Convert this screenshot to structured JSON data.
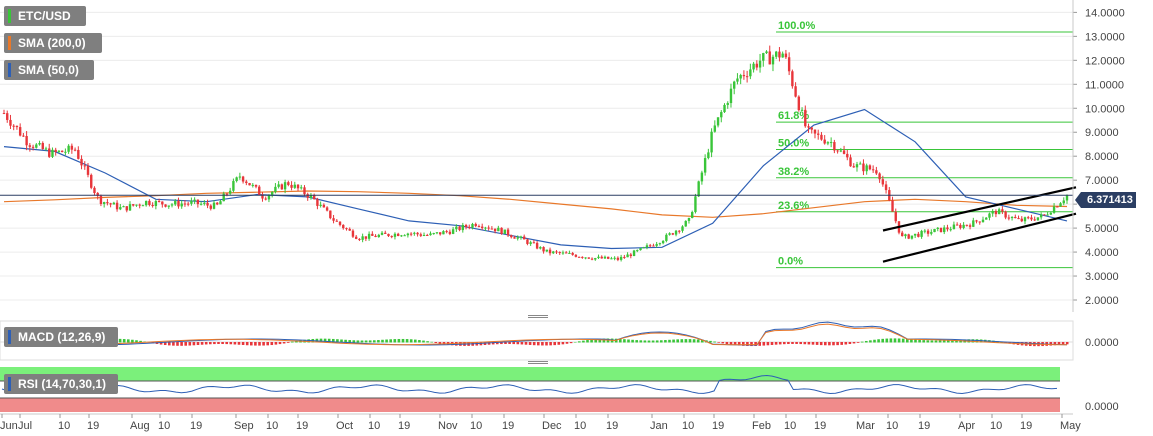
{
  "legends": {
    "pair": "ETC/USD",
    "sma200": "SMA (200,0)",
    "sma50": "SMA (50,0)",
    "macd": "MACD (12,26,9)",
    "rsi": "RSI (14,70,30,1)"
  },
  "colors": {
    "up": "#39c539",
    "down": "#e8353a",
    "sma200": "#e8782a",
    "sma50": "#2d5fb5",
    "fib": "#39c539",
    "rsi_overbought": "#7bf07b",
    "rsi_oversold": "#f08b8b",
    "current_price_bg": "#2b3e63"
  },
  "current_price": "6.371413",
  "macd_axis_label": "0.0000",
  "rsi_axis_label": "0.0000",
  "chart_data": {
    "type": "candlestick",
    "title": "ETC/USD",
    "y_axis": {
      "ticks": [
        "14.0000",
        "13.0000",
        "12.0000",
        "11.0000",
        "10.0000",
        "9.0000",
        "8.0000",
        "7.0000",
        "6.0000",
        "5.0000",
        "4.0000",
        "3.0000",
        "2.0000"
      ],
      "ylim": [
        1.75,
        14.35
      ]
    },
    "x_axis": {
      "ticks": [
        "Jun",
        "Jul",
        "10",
        "19",
        "Aug",
        "10",
        "19",
        "Sep",
        "10",
        "19",
        "Oct",
        "10",
        "19",
        "Nov",
        "10",
        "19",
        "Dec",
        "10",
        "19",
        "Jan",
        "10",
        "19",
        "Feb",
        "10",
        "19",
        "Mar",
        "10",
        "19",
        "Apr",
        "10",
        "19",
        "May"
      ]
    },
    "fibonacci": {
      "levels": [
        {
          "label": "100.0%",
          "value": 13.18
        },
        {
          "label": "61.8%",
          "value": 9.42
        },
        {
          "label": "50.0%",
          "value": 8.28
        },
        {
          "label": "38.2%",
          "value": 7.1
        },
        {
          "label": "23.6%",
          "value": 5.68
        },
        {
          "label": "0.0%",
          "value": 3.35
        }
      ]
    },
    "channel": {
      "upper": [
        [
          0,
          4.9
        ],
        [
          1,
          6.7
        ]
      ],
      "lower": [
        [
          0,
          3.6
        ],
        [
          1,
          5.6
        ]
      ]
    },
    "sma200_points": [
      6.1,
      6.18,
      6.28,
      6.35,
      6.45,
      6.5,
      6.55,
      6.52,
      6.45,
      6.35,
      6.2,
      6.0,
      5.8,
      5.55,
      5.45,
      5.6,
      5.85,
      6.1,
      6.2,
      6.1,
      5.95,
      5.9
    ],
    "sma50_points": [
      8.4,
      8.2,
      7.3,
      6.2,
      6.1,
      6.4,
      6.3,
      5.8,
      5.3,
      5.1,
      4.7,
      4.3,
      4.15,
      4.2,
      5.2,
      7.6,
      9.3,
      9.95,
      8.6,
      6.3,
      5.8,
      5.3
    ],
    "series": [
      {
        "name": "ETC/USD",
        "closes": [
          9.8,
          8.6,
          8.1,
          8.3,
          6.2,
          5.8,
          6.1,
          6.0,
          6.05,
          5.9,
          7.2,
          6.3,
          6.9,
          6.3,
          5.3,
          4.6,
          4.7,
          4.8,
          4.7,
          4.9,
          5.2,
          4.9,
          4.5,
          4.0,
          3.9,
          3.75,
          3.7,
          4.1,
          4.6,
          5.3,
          9.0,
          11.2,
          12.0,
          12.3,
          9.0,
          8.6,
          7.6,
          7.4,
          4.6,
          4.8,
          5.0,
          5.2,
          5.7,
          5.3,
          5.5,
          6.37
        ]
      }
    ]
  }
}
